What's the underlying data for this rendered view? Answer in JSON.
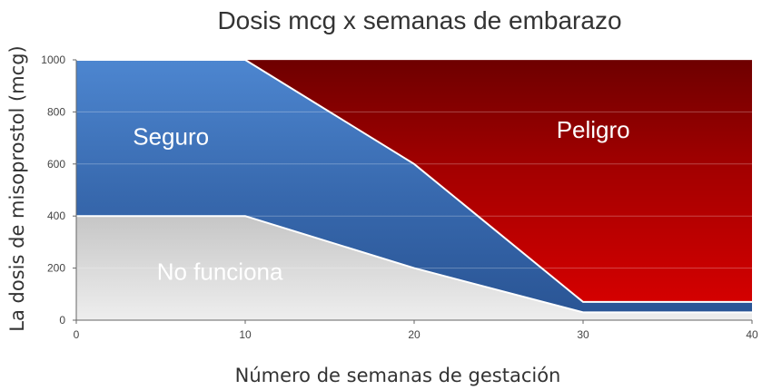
{
  "chart_data": {
    "type": "area",
    "title": "Dosis mcg x semanas de embarazo",
    "xlabel": "Número de semanas de gestación",
    "ylabel": "La dosis de misoprostol (mcg)",
    "xlim": [
      0,
      40
    ],
    "ylim": [
      0,
      1000
    ],
    "x_ticks": [
      0,
      10,
      20,
      30,
      40
    ],
    "y_ticks": [
      0,
      200,
      400,
      600,
      800,
      1000
    ],
    "grid": true,
    "regions": [
      {
        "name": "No funciona",
        "color": "#d4d4d4",
        "upper": [
          [
            0,
            400
          ],
          [
            10,
            400
          ],
          [
            20,
            200
          ],
          [
            30,
            30
          ],
          [
            40,
            30
          ]
        ]
      },
      {
        "name": "Seguro",
        "color": "#3d6fb0",
        "upper": [
          [
            0,
            1000
          ],
          [
            10,
            1000
          ],
          [
            20,
            600
          ],
          [
            30,
            70
          ],
          [
            40,
            70
          ]
        ]
      },
      {
        "name": "Peligro",
        "color": "#b30000",
        "upper": [
          [
            0,
            1000
          ],
          [
            40,
            1000
          ]
        ]
      }
    ]
  }
}
